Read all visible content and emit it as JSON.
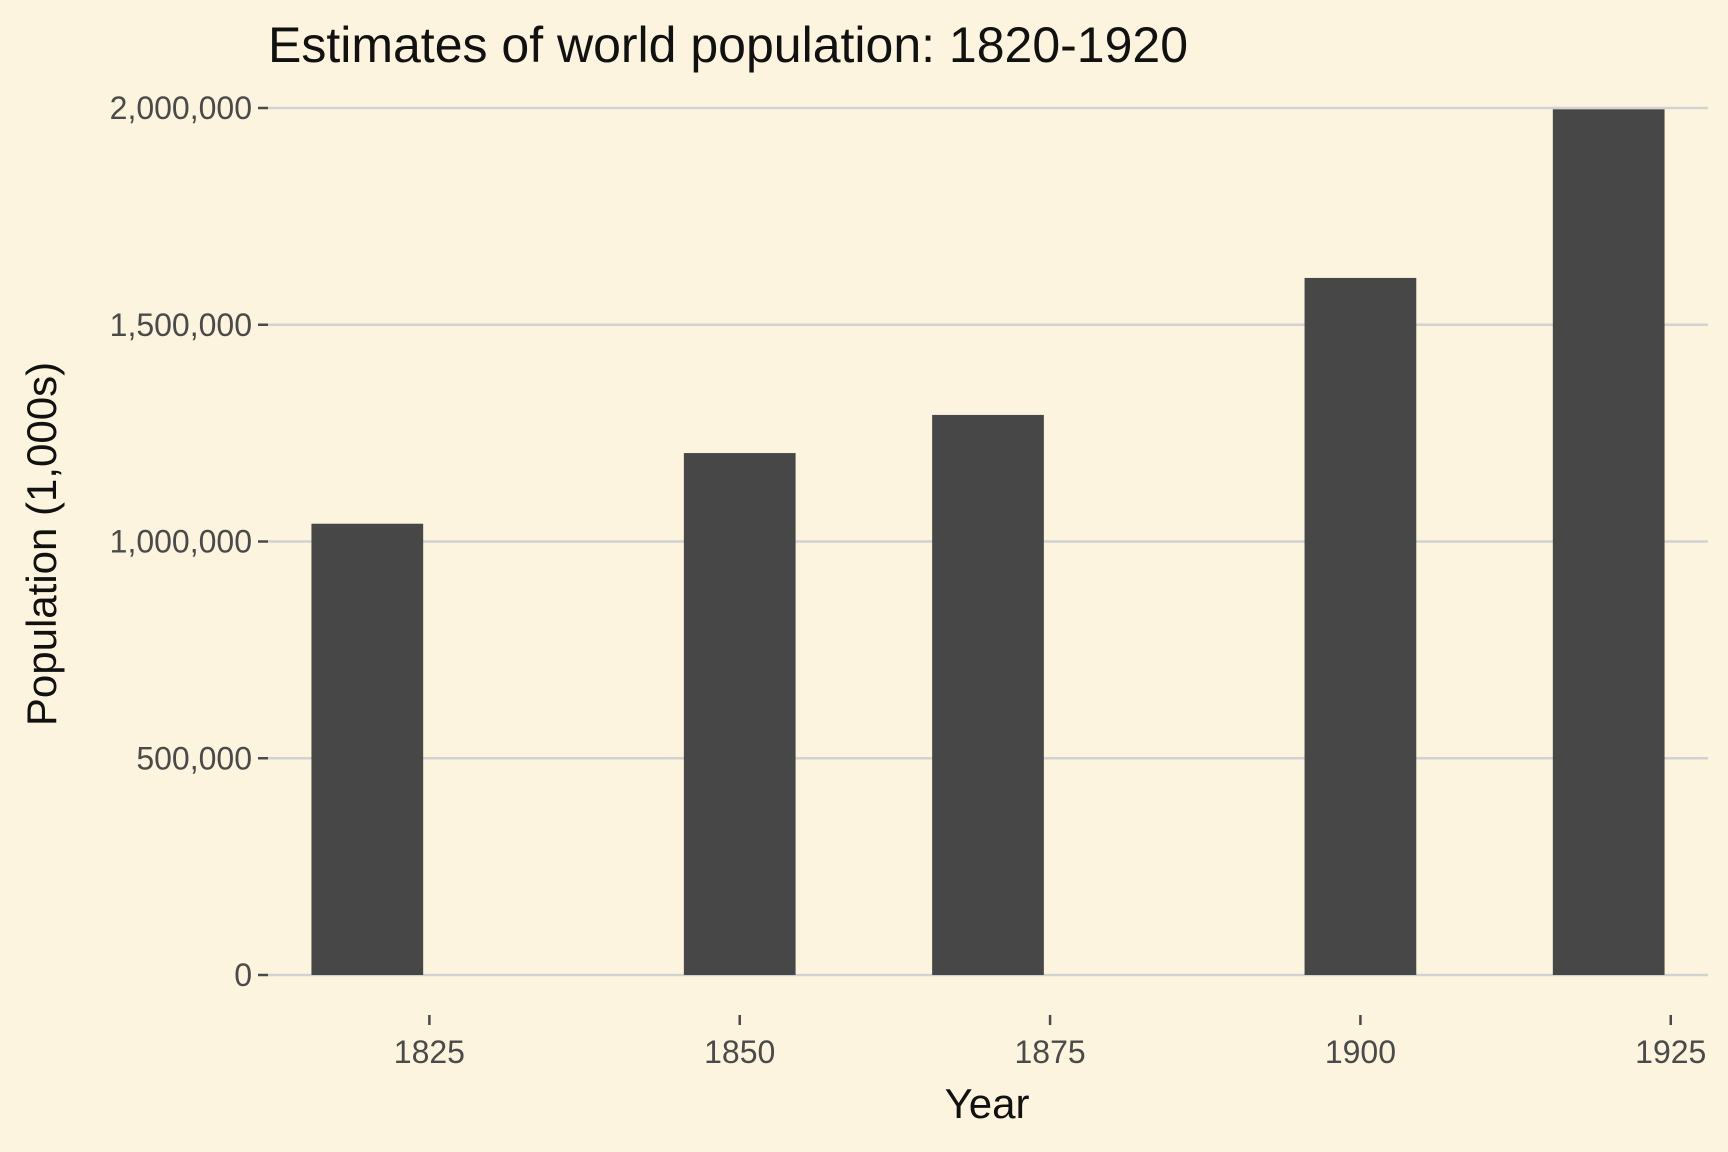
{
  "chart_data": {
    "type": "bar",
    "title": "Estimates of world population: 1820-1920",
    "xlabel": "Year",
    "ylabel": "Population (1,000s)",
    "x": [
      1820,
      1850,
      1870,
      1900,
      1920
    ],
    "values": [
      1041000,
      1204000,
      1292000,
      1608000,
      1997000
    ],
    "x_ticks": [
      1825,
      1850,
      1875,
      1900,
      1925
    ],
    "x_tick_labels": [
      "1825",
      "1850",
      "1875",
      "1900",
      "1925"
    ],
    "y_ticks": [
      0,
      500000,
      1000000,
      1500000,
      2000000
    ],
    "y_tick_labels": [
      "0",
      "500,000",
      "1,000,000",
      "1,500,000",
      "2,000,000"
    ],
    "xlim": [
      1812,
      1928
    ],
    "ylim": [
      0,
      2000000
    ],
    "grid": "horizontal",
    "legend": "none",
    "colors": {
      "background": "#fcf4de",
      "bar": "#474747",
      "grid": "#d2d2d2",
      "axis_tick": "#4a4a4a"
    }
  }
}
